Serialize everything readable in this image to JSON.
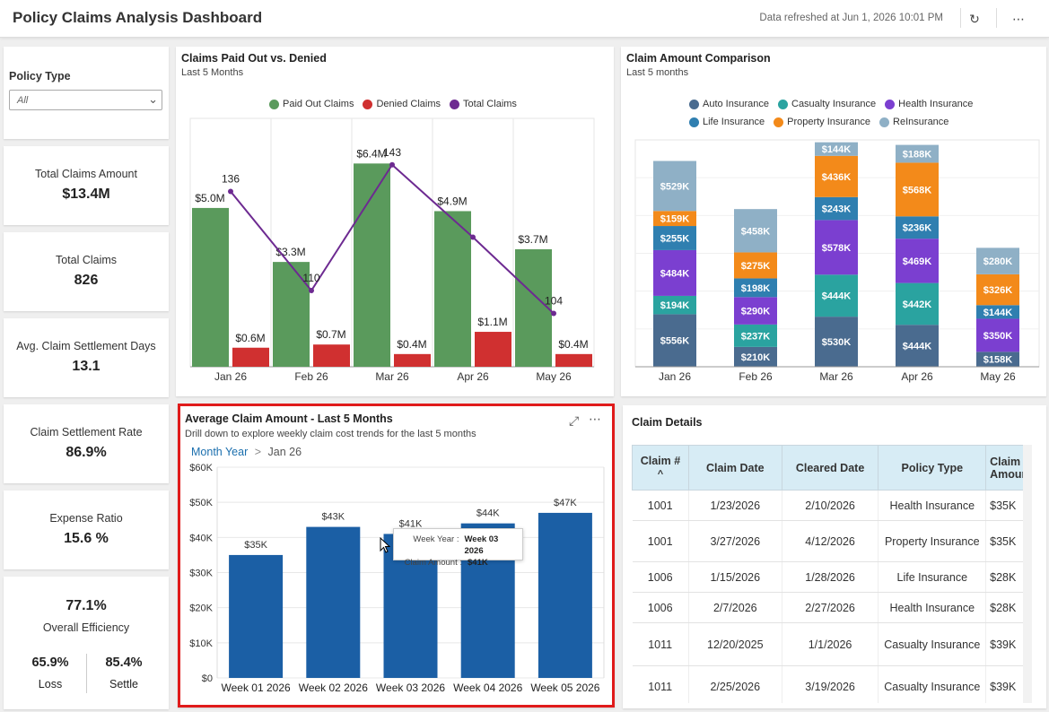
{
  "header": {
    "title": "Policy Claims Analysis Dashboard",
    "refreshed": "Data refreshed at Jun 1, 2026 10:01 PM",
    "refresh_icon": "↻",
    "more_icon": "⋯"
  },
  "filter": {
    "label": "Policy Type",
    "value": "All"
  },
  "kpis": [
    {
      "label": "Total Claims Amount",
      "value": "$13.4M"
    },
    {
      "label": "Total Claims",
      "value": "826"
    },
    {
      "label": "Avg. Claim Settlement Days",
      "value": "13.1"
    },
    {
      "label": "Claim Settlement Rate",
      "value": "86.9%"
    },
    {
      "label": "Expense Ratio",
      "value": "15.6 %"
    }
  ],
  "efficiency": {
    "value": "77.1%",
    "label": "Overall Efficiency",
    "loss_value": "65.9%",
    "loss_label": "Loss",
    "settle_value": "85.4%",
    "settle_label": "Settle"
  },
  "paid_denied": {
    "title": "Claims Paid Out vs. Denied",
    "subtitle": "Last 5 Months"
  },
  "comparison": {
    "title": "Claim Amount Comparison",
    "subtitle": "Last 5 months"
  },
  "average": {
    "title": "Average Claim Amount - Last 5 Months",
    "subtitle": "Drill down to explore weekly claim cost trends for the last 5 months",
    "breadcrumb_root": "Month Year",
    "breadcrumb_sep": ">",
    "breadcrumb_current": "Jan 26",
    "expand_icon": "⤢",
    "more_icon": "⋯",
    "tooltip": {
      "week_label": "Week Year :",
      "week_value": "Week 03 2026",
      "amount_label": "Claim Amount :",
      "amount_value": "$41K"
    }
  },
  "details": {
    "title": "Claim Details",
    "sort_icon": "^",
    "columns": [
      "Claim #",
      "Claim Date",
      "Cleared Date",
      "Policy Type",
      "Claim Amount"
    ],
    "rows": [
      [
        "1001",
        "1/23/2026",
        "2/10/2026",
        "Health Insurance",
        "$35K"
      ],
      [
        "1001",
        "3/27/2026",
        "4/12/2026",
        "Property Insurance",
        "$35K"
      ],
      [
        "1006",
        "1/15/2026",
        "1/28/2026",
        "Life Insurance",
        "$28K"
      ],
      [
        "1006",
        "2/7/2026",
        "2/27/2026",
        "Health Insurance",
        "$28K"
      ],
      [
        "1011",
        "12/20/2025",
        "1/1/2026",
        "Casualty Insurance",
        "$39K"
      ],
      [
        "1011",
        "2/25/2026",
        "3/19/2026",
        "Casualty Insurance",
        "$39K"
      ]
    ]
  },
  "chart_data": [
    {
      "type": "bar",
      "title": "Claims Paid Out vs. Denied",
      "subtitle": "Last 5 Months",
      "categories": [
        "Jan 26",
        "Feb 26",
        "Mar 26",
        "Apr 26",
        "May 26"
      ],
      "series": [
        {
          "name": "Paid Out Claims",
          "kind": "bar",
          "color": "#5a9a5c",
          "values": [
            5.0,
            3.3,
            6.4,
            4.9,
            3.7
          ],
          "labels": [
            "$5.0M",
            "$3.3M",
            "$6.4M",
            "$4.9M",
            "$3.7M"
          ]
        },
        {
          "name": "Denied Claims",
          "kind": "bar",
          "color": "#d03030",
          "values": [
            0.6,
            0.7,
            0.4,
            1.1,
            0.4
          ],
          "labels": [
            "$0.6M",
            "$0.7M",
            "$0.4M",
            "$1.1M",
            "$0.4M"
          ]
        },
        {
          "name": "Total Claims",
          "kind": "line",
          "color": "#6d2a91",
          "values": [
            136,
            110,
            143,
            124,
            104
          ],
          "labels": [
            "136",
            "110",
            "143",
            "",
            "104"
          ]
        }
      ],
      "amount_max": 7.2,
      "count_range": [
        90,
        150
      ],
      "legend": "top"
    },
    {
      "type": "bar",
      "stacked": true,
      "title": "Claim Amount Comparison",
      "subtitle": "Last 5 months",
      "categories": [
        "Jan 26",
        "Feb 26",
        "Mar 26",
        "Apr 26",
        "May 26"
      ],
      "series": [
        {
          "name": "Auto Insurance",
          "color": "#4a6b8f",
          "values": [
            556,
            210,
            530,
            444,
            158
          ]
        },
        {
          "name": "Casualty Insurance",
          "color": "#2aa3a0",
          "values": [
            194,
            237,
            444,
            442,
            0
          ]
        },
        {
          "name": "Health Insurance",
          "color": "#7b3fd0",
          "values": [
            484,
            290,
            578,
            469,
            350
          ]
        },
        {
          "name": "Life Insurance",
          "color": "#2f7fb0",
          "values": [
            255,
            198,
            243,
            236,
            144
          ]
        },
        {
          "name": "Property Insurance",
          "color": "#f38a1a",
          "values": [
            159,
            275,
            436,
            568,
            326
          ]
        },
        {
          "name": "ReInsurance",
          "color": "#8fb0c6",
          "values": [
            529,
            458,
            144,
            188,
            280
          ]
        }
      ],
      "max": 2400,
      "legend": "top"
    },
    {
      "type": "bar",
      "title": "Average Claim Amount - Last 5 Months",
      "categories": [
        "Week 01 2026",
        "Week 02 2026",
        "Week 03 2026",
        "Week 04 2026",
        "Week 05 2026"
      ],
      "values": [
        35,
        43,
        41,
        44,
        47
      ],
      "value_labels": [
        "$35K",
        "$43K",
        "$41K",
        "$44K",
        "$47K"
      ],
      "ylim": [
        0,
        60
      ],
      "yticks": [
        "$0",
        "$10K",
        "$20K",
        "$30K",
        "$40K",
        "$50K",
        "$60K"
      ],
      "color": "#1b5fa5",
      "grid": true
    }
  ]
}
